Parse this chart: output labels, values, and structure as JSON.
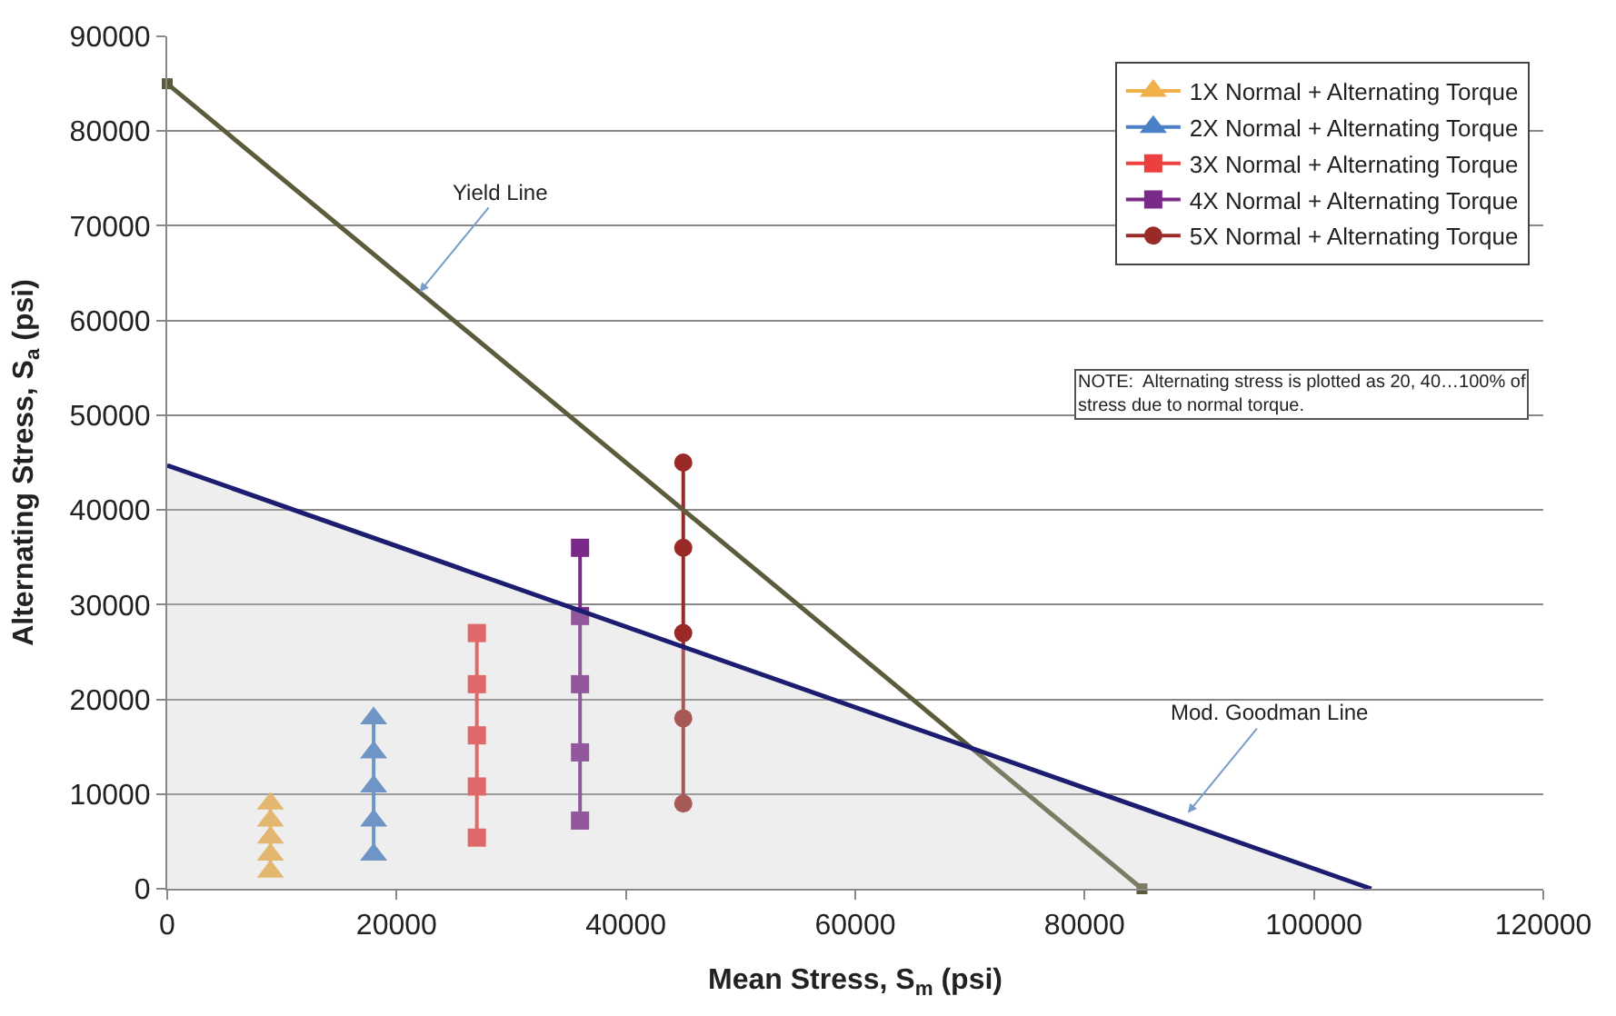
{
  "chart_data": {
    "type": "line",
    "xlabel": "Mean Stress, S$_{m}$ (psi)",
    "ylabel": "Alternating Stress, S$_{a}$ (psi)",
    "xlim": [
      0,
      120000
    ],
    "xticks": [
      0,
      20000,
      40000,
      60000,
      80000,
      100000,
      120000
    ],
    "ylim": [
      0,
      90000
    ],
    "yticks": [
      0,
      10000,
      20000,
      30000,
      40000,
      50000,
      60000,
      70000,
      80000,
      90000
    ],
    "grid": "y",
    "legend": "top right",
    "series": [
      {
        "name": "1X Normal + Alternating Torque",
        "color": "#f0b04a",
        "marker": "triangle",
        "x": [
          9000,
          9000,
          9000,
          9000,
          9000
        ],
        "values": [
          1800,
          3600,
          5400,
          7200,
          9000
        ]
      },
      {
        "name": "2X Normal + Alternating Torque",
        "color": "#4a80c8",
        "marker": "triangle",
        "x": [
          18000,
          18000,
          18000,
          18000,
          18000
        ],
        "values": [
          3600,
          7200,
          10800,
          14400,
          18000
        ]
      },
      {
        "name": "3X Normal + Alternating Torque",
        "color": "#ec4040",
        "marker": "square",
        "x": [
          27000,
          27000,
          27000,
          27000,
          27000
        ],
        "values": [
          5400,
          10800,
          16200,
          21600,
          27000
        ]
      },
      {
        "name": "4X Normal + Alternating Torque",
        "color": "#7a2a88",
        "marker": "square",
        "x": [
          36000,
          36000,
          36000,
          36000,
          36000
        ],
        "values": [
          7200,
          14400,
          21600,
          28800,
          36000
        ]
      },
      {
        "name": "5X Normal + Alternating Torque",
        "color": "#9a2a28",
        "marker": "circle",
        "x": [
          45000,
          45000,
          45000,
          45000,
          45000
        ],
        "values": [
          9000,
          18000,
          27000,
          36000,
          45000
        ]
      },
      {
        "type": "line",
        "color": "#5c5c3c",
        "marker": "square",
        "x": [
          0,
          85000
        ],
        "values": [
          85000,
          0
        ]
      },
      {
        "type": "area",
        "color": "#1c1c70",
        "marker": "none",
        "x": [
          0,
          105000
        ],
        "values": [
          44700,
          0
        ]
      }
    ],
    "annotations": [
      {
        "text": "Yield Line",
        "x": 22000,
        "y": 63000
      },
      {
        "text": "Mod. Goodman Line",
        "x": 89000,
        "y": 8000
      },
      "NOTE:  Alternating stress is plotted as 20, 40…100% of\nstress due to normal torque."
    ]
  }
}
